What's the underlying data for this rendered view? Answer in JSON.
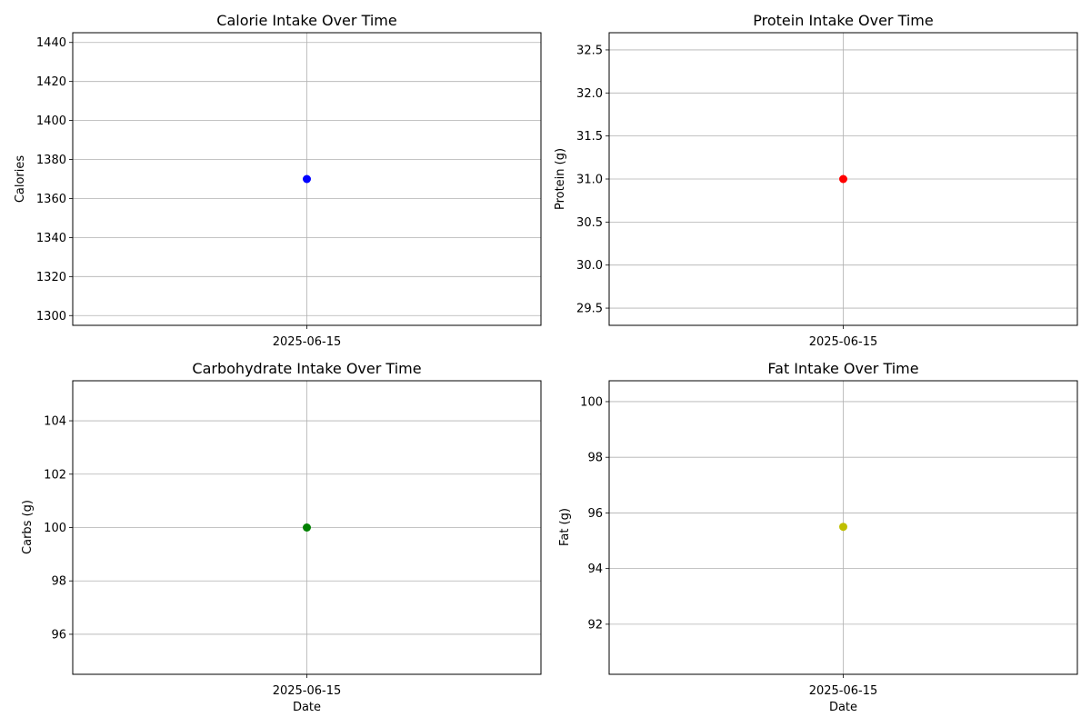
{
  "chart_data": [
    {
      "type": "line",
      "title": "Calorie Intake Over Time",
      "xlabel": "",
      "ylabel": "Calories",
      "x": [
        "2025-06-15"
      ],
      "series": [
        {
          "values": [
            1370
          ],
          "color": "#0000ff"
        }
      ],
      "ylim": [
        1295,
        1445
      ],
      "yticks": [
        "1300",
        "1320",
        "1340",
        "1360",
        "1380",
        "1400",
        "1420",
        "1440"
      ],
      "grid": true
    },
    {
      "type": "line",
      "title": "Protein Intake Over Time",
      "xlabel": "",
      "ylabel": "Protein (g)",
      "x": [
        "2025-06-15"
      ],
      "series": [
        {
          "values": [
            31.0
          ],
          "color": "#ff0000"
        }
      ],
      "ylim": [
        29.3,
        32.7
      ],
      "yticks": [
        "29.5",
        "30.0",
        "30.5",
        "31.0",
        "31.5",
        "32.0",
        "32.5"
      ],
      "grid": true
    },
    {
      "type": "line",
      "title": "Carbohydrate Intake Over Time",
      "xlabel": "Date",
      "ylabel": "Carbs (g)",
      "x": [
        "2025-06-15"
      ],
      "series": [
        {
          "values": [
            100
          ],
          "color": "#008000"
        }
      ],
      "ylim": [
        94.5,
        105.5
      ],
      "yticks": [
        "96",
        "98",
        "100",
        "102",
        "104"
      ],
      "grid": true
    },
    {
      "type": "line",
      "title": "Fat Intake Over Time",
      "xlabel": "Date",
      "ylabel": "Fat (g)",
      "x": [
        "2025-06-15"
      ],
      "series": [
        {
          "values": [
            95.5
          ],
          "color": "#bfbf00"
        }
      ],
      "ylim": [
        90.2,
        100.75
      ],
      "yticks": [
        "92",
        "94",
        "96",
        "98",
        "100"
      ],
      "grid": true
    }
  ]
}
